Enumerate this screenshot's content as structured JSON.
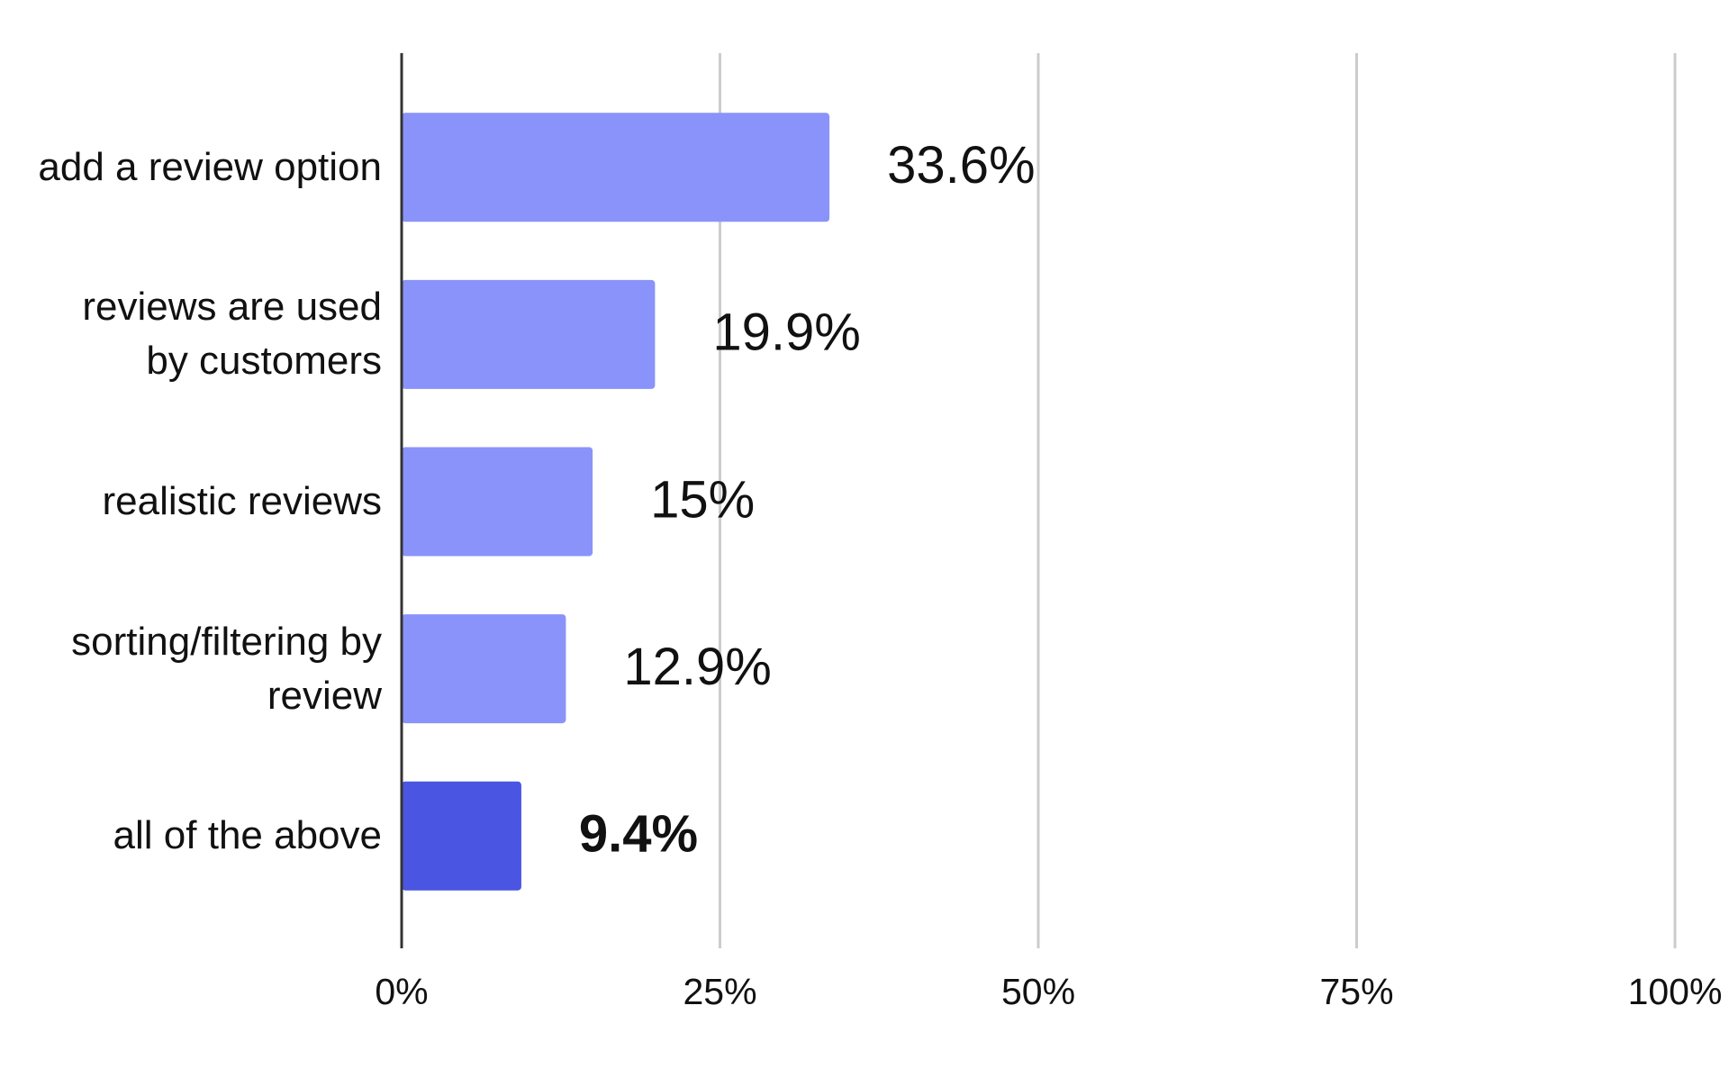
{
  "chart_data": {
    "type": "hbar",
    "categories": [
      "add a review option",
      "reviews are used by customers",
      "realistic reviews",
      "sorting/filtering by review",
      "all of the above"
    ],
    "values": [
      33.6,
      19.9,
      15,
      12.9,
      9.4
    ],
    "value_labels": [
      "33.6%",
      "19.9%",
      "15%",
      "12.9%",
      "9.4%"
    ],
    "colors": [
      "#8a93fa",
      "#8a93fa",
      "#8a93fa",
      "#8a93fa",
      "#4a56e2"
    ],
    "value_label_bold": [
      false,
      false,
      false,
      false,
      true
    ],
    "xlim": [
      0,
      100
    ],
    "xticks": [
      {
        "value": 0,
        "label": "0%"
      },
      {
        "value": 25,
        "label": "25%"
      },
      {
        "value": 50,
        "label": "50%"
      },
      {
        "value": 75,
        "label": "75%"
      },
      {
        "value": 100,
        "label": "100%"
      }
    ],
    "grid": true
  }
}
